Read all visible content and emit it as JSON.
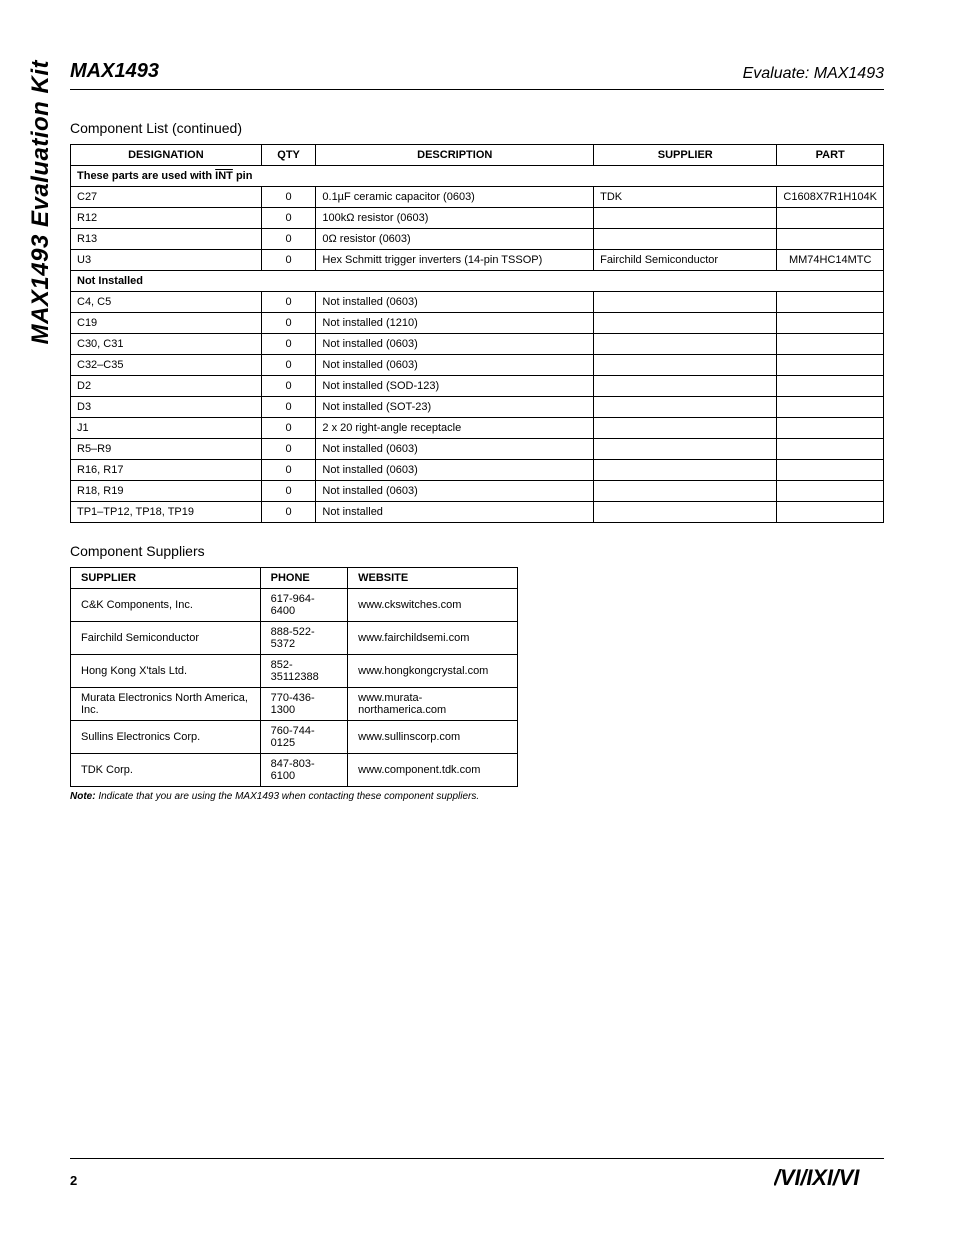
{
  "side_title": "MAX1493 Evaluation Kit",
  "header": {
    "part_number": "MAX1493",
    "eval_label": "Evaluate: MAX1493"
  },
  "table": {
    "title": "Component List (continued)",
    "columns": [
      "DESIGNATION",
      "QTY",
      "DESCRIPTION",
      "SUPPLIER",
      "PART"
    ],
    "section1_prefix": "These parts are used with ",
    "section1_int": "INT",
    "section1_suffix": " pin",
    "rows1": [
      [
        "C27",
        "0",
        "0.1µF ceramic capacitor (0603)",
        "TDK",
        "C1608X7R1H104K"
      ],
      [
        "R12",
        "0",
        "100kΩ resistor (0603)",
        "",
        ""
      ],
      [
        "R13",
        "0",
        "0Ω resistor (0603)",
        "",
        ""
      ],
      [
        "U3",
        "0",
        "Hex Schmitt trigger inverters (14-pin TSSOP)",
        "Fairchild Semiconductor",
        "MM74HC14MTC"
      ]
    ],
    "section2": "Not Installed",
    "rows2": [
      [
        "C4, C5",
        "0",
        "Not installed (0603)",
        "",
        ""
      ],
      [
        "C19",
        "0",
        "Not installed (1210)",
        "",
        ""
      ],
      [
        "C30, C31",
        "0",
        "Not installed (0603)",
        "",
        ""
      ],
      [
        "C32–C35",
        "0",
        "Not installed (0603)",
        "",
        ""
      ],
      [
        "D2",
        "0",
        "Not installed (SOD-123)",
        "",
        ""
      ],
      [
        "D3",
        "0",
        "Not installed (SOT-23)",
        "",
        ""
      ],
      [
        "J1",
        "0",
        "2 x 20 right-angle receptacle",
        "",
        ""
      ],
      [
        "R5–R9",
        "0",
        "Not installed (0603)",
        "",
        ""
      ],
      [
        "R16, R17",
        "0",
        "Not installed (0603)",
        "",
        ""
      ],
      [
        "R18, R19",
        "0",
        "Not installed (0603)",
        "",
        ""
      ],
      [
        "TP1–TP12, TP18, TP19",
        "0",
        "Not installed",
        "",
        ""
      ]
    ]
  },
  "suppliers": {
    "title": "Component Suppliers",
    "columns": [
      "SUPPLIER",
      "PHONE",
      "WEBSITE"
    ],
    "rows": [
      [
        "C&K Components, Inc.",
        "617-964-6400",
        "www.ckswitches.com"
      ],
      [
        "Fairchild Semiconductor",
        "888-522-5372",
        "www.fairchildsemi.com"
      ],
      [
        "Hong Kong X'tals Ltd.",
        "852-35112388",
        "www.hongkongcrystal.com"
      ],
      [
        "Murata Electronics North America, Inc.",
        "770-436-1300",
        "www.murata-northamerica.com"
      ],
      [
        "Sullins Electronics Corp.",
        "760-744-0125",
        "www.sullinscorp.com"
      ],
      [
        "TDK Corp.",
        "847-803-6100",
        "www.component.tdk.com"
      ]
    ],
    "note_bold": "Note:",
    "note_text": " Indicate that you are using the MAX1493 when contacting these component suppliers."
  },
  "footer": {
    "page": "2",
    "logo": "MAXIM"
  }
}
